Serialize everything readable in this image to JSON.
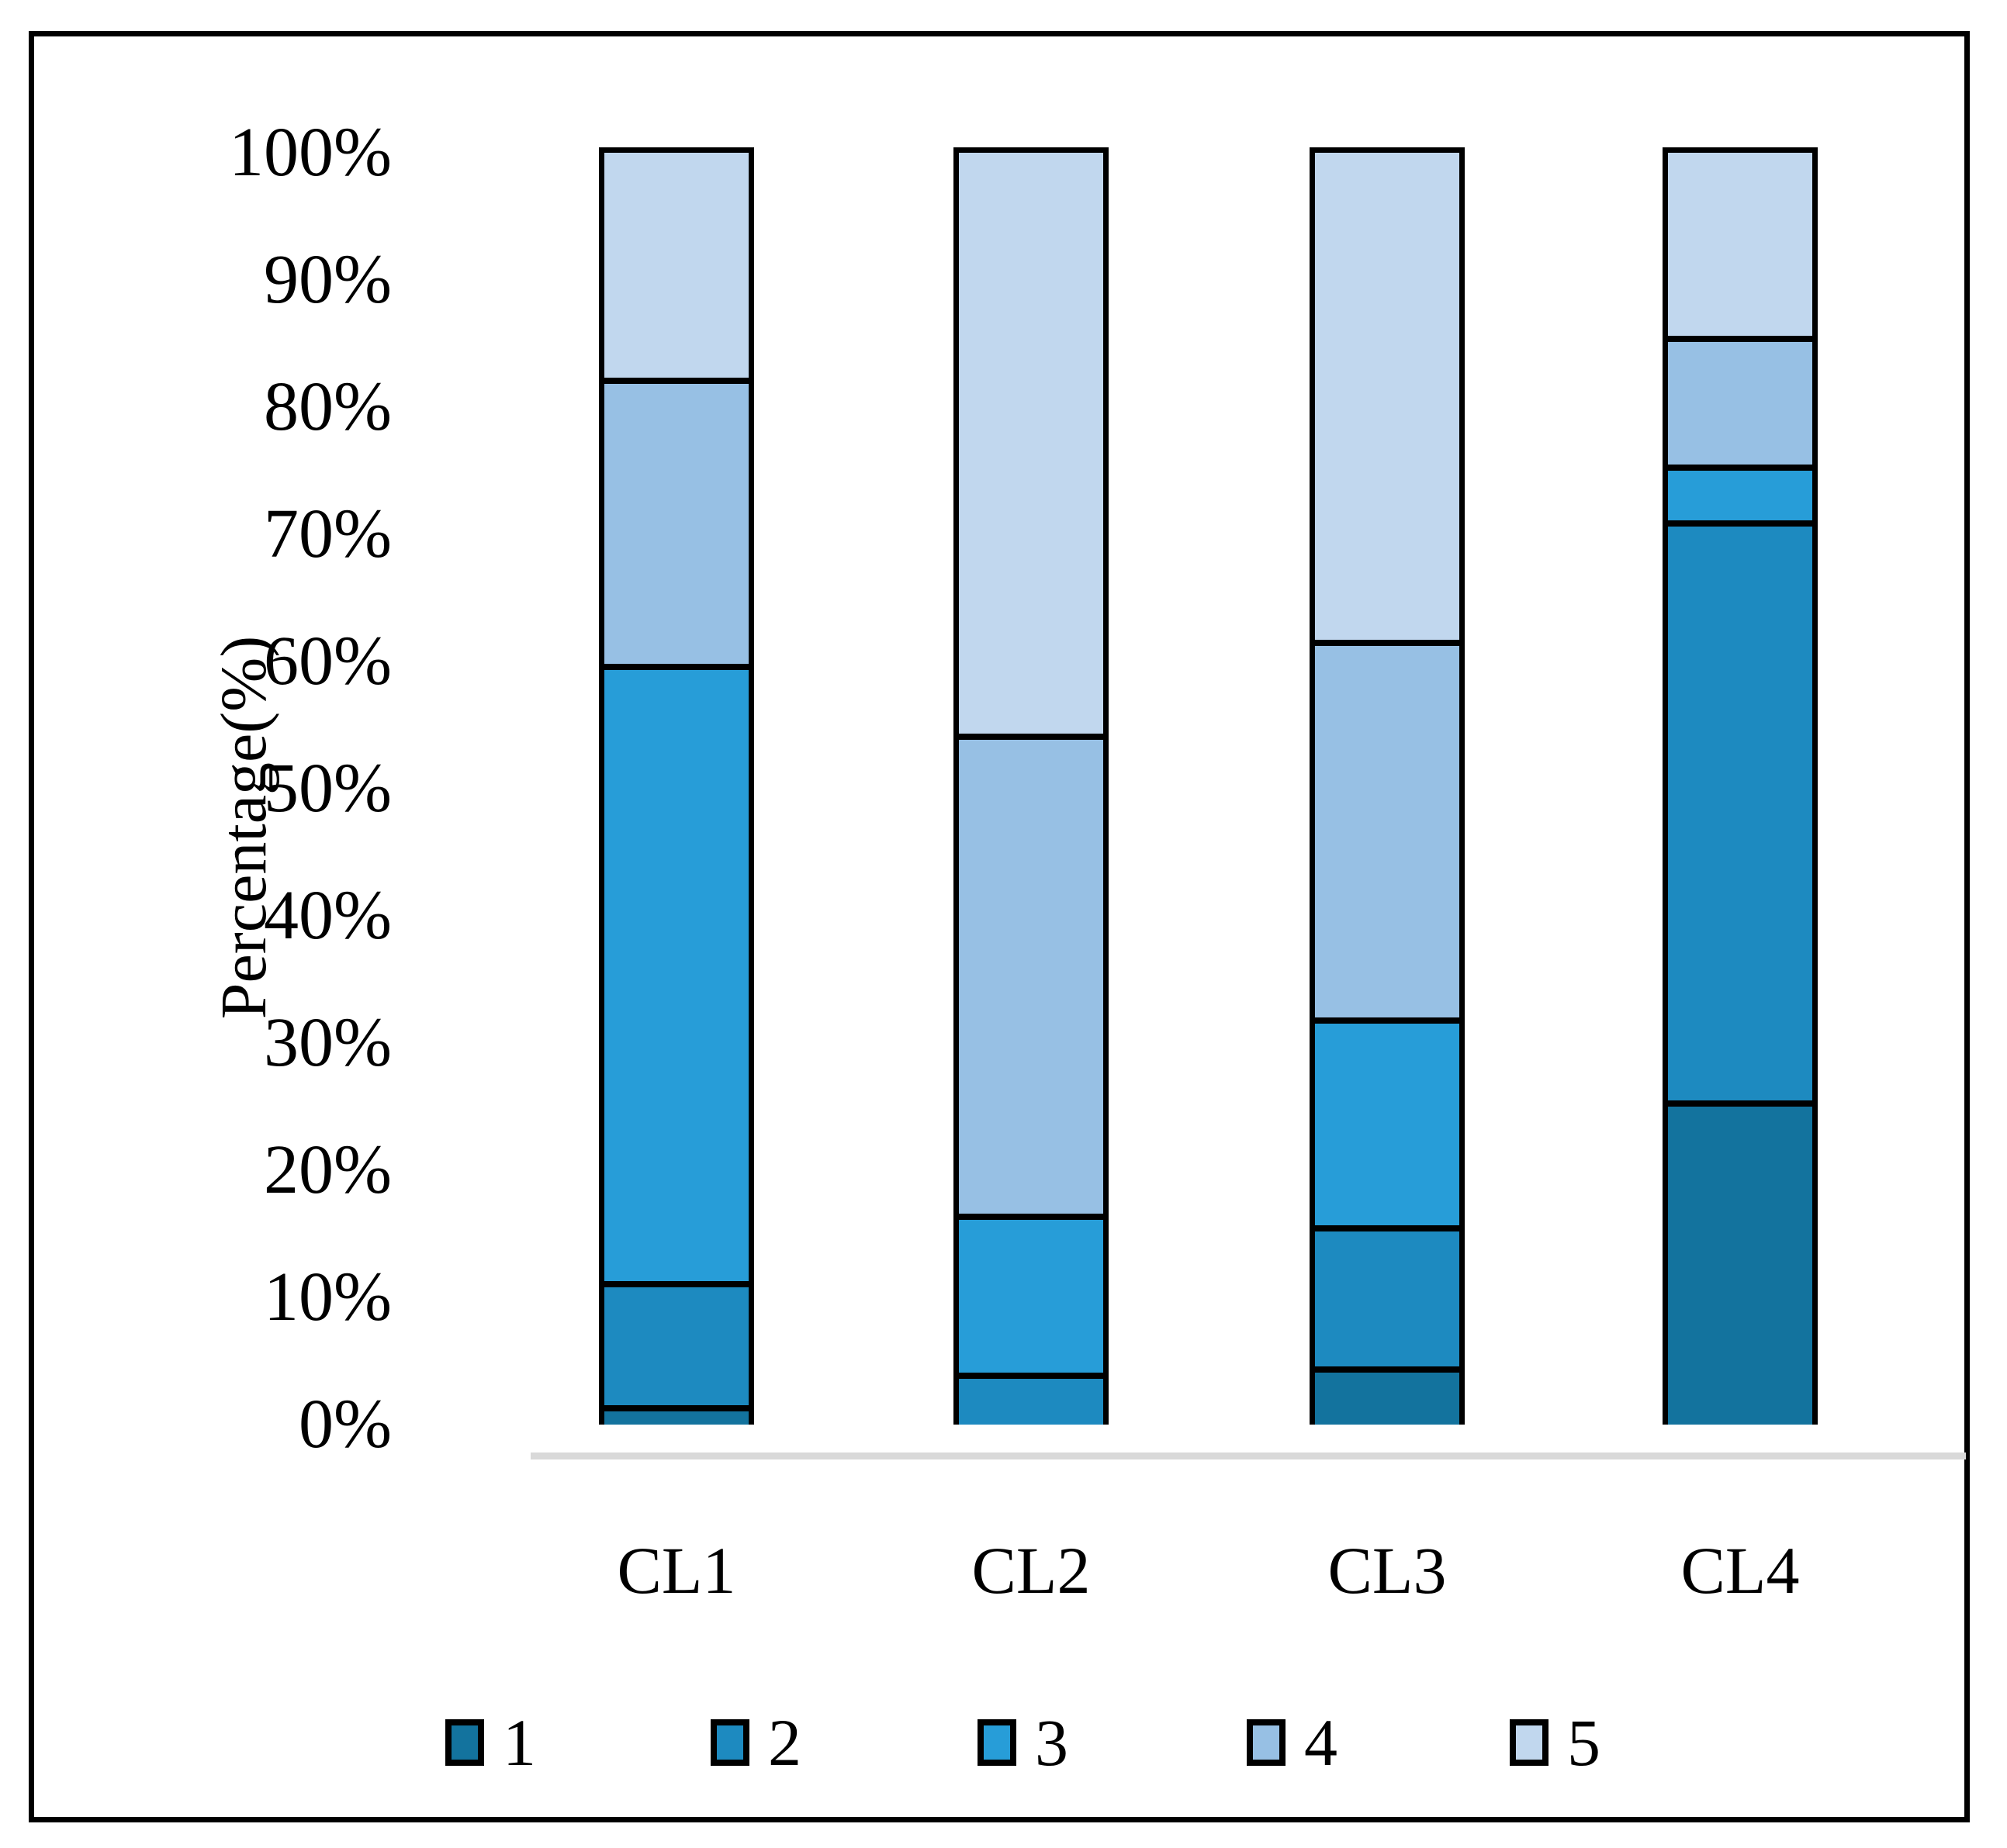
{
  "figure": {
    "ylabel": "Percentage(%)"
  },
  "chart_data": {
    "type": "bar",
    "stacked": true,
    "normalized": "100%",
    "title": "",
    "xlabel": "",
    "ylabel": "Percentage(%)",
    "categories": [
      "CL1",
      "CL2",
      "CL3",
      "CL4"
    ],
    "series": [
      {
        "name": "1",
        "color": "#13739e",
        "values": [
          1.5,
          0,
          4.6,
          25.5
        ]
      },
      {
        "name": "2",
        "color": "#1d8ac0",
        "values": [
          9.8,
          4.1,
          11.1,
          45.6
        ]
      },
      {
        "name": "3",
        "color": "#279dd8",
        "values": [
          48.5,
          12.5,
          16.3,
          4.4
        ]
      },
      {
        "name": "4",
        "color": "#97c0e4",
        "values": [
          22.5,
          37.7,
          29.7,
          10.1
        ]
      },
      {
        "name": "5",
        "color": "#c1d7ee",
        "values": [
          17.7,
          45.7,
          38.3,
          14.4
        ]
      }
    ],
    "ylim": [
      0,
      100
    ],
    "yticks": [
      "0%",
      "10%",
      "20%",
      "30%",
      "40%",
      "50%",
      "60%",
      "70%",
      "80%",
      "90%",
      "100%"
    ],
    "grid": false,
    "legend_position": "bottom",
    "legend_labels": [
      "1",
      "2",
      "3",
      "4",
      "5"
    ],
    "bar_border_color": "#000000",
    "baseline_color": "#d9d9d9"
  }
}
